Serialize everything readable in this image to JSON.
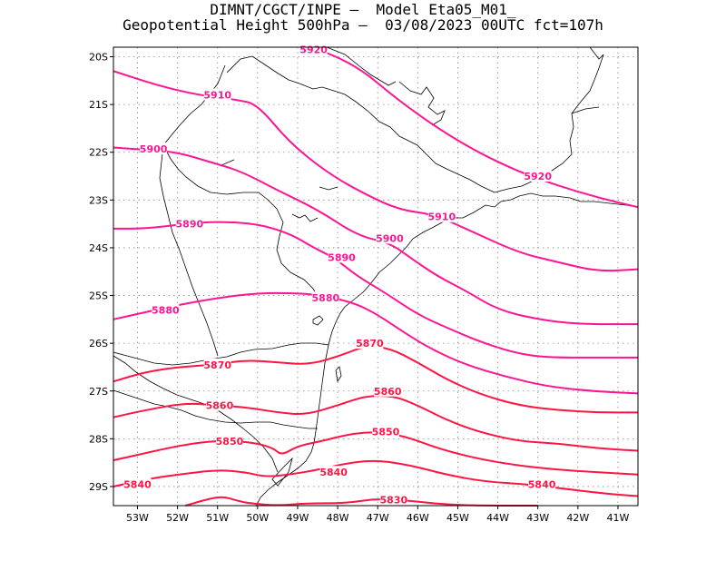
{
  "title": {
    "line1": "DIMNT/CGCT/INPE –  Model Eta05_M01_",
    "line2": "Geopotential Height 500hPa –  03/08/2023 00UTC fct=107h"
  },
  "map": {
    "lon_range": [
      -53.6,
      -40.5
    ],
    "lat_range": [
      -29.4,
      -19.8
    ],
    "lon_ticks": [
      {
        "value": -53,
        "label": "53W"
      },
      {
        "value": -52,
        "label": "52W"
      },
      {
        "value": -51,
        "label": "51W"
      },
      {
        "value": -50,
        "label": "50W"
      },
      {
        "value": -49,
        "label": "49W"
      },
      {
        "value": -48,
        "label": "48W"
      },
      {
        "value": -47,
        "label": "47W"
      },
      {
        "value": -46,
        "label": "46W"
      },
      {
        "value": -45,
        "label": "45W"
      },
      {
        "value": -44,
        "label": "44W"
      },
      {
        "value": -43,
        "label": "43W"
      },
      {
        "value": -42,
        "label": "42W"
      },
      {
        "value": -41,
        "label": "41W"
      }
    ],
    "lat_ticks": [
      {
        "value": -20,
        "label": "20S"
      },
      {
        "value": -21,
        "label": "21S"
      },
      {
        "value": -22,
        "label": "22S"
      },
      {
        "value": -23,
        "label": "23S"
      },
      {
        "value": -24,
        "label": "24S"
      },
      {
        "value": -25,
        "label": "25S"
      },
      {
        "value": -26,
        "label": "26S"
      },
      {
        "value": -27,
        "label": "27S"
      },
      {
        "value": -28,
        "label": "28S"
      },
      {
        "value": -29,
        "label": "29S"
      }
    ],
    "grid": "dotted",
    "boundary_color": "#000000",
    "contours": [
      {
        "value": 5920,
        "label": "5920",
        "color": "#ff1493",
        "points": [
          [
            -48.6,
            -19.8
          ],
          [
            -47.5,
            -20.2
          ],
          [
            -46.5,
            -20.9
          ],
          [
            -45.5,
            -21.5
          ],
          [
            -44.5,
            -22.0
          ],
          [
            -43.5,
            -22.4
          ],
          [
            -42.5,
            -22.7
          ],
          [
            -41.5,
            -22.95
          ],
          [
            -40.5,
            -23.15
          ]
        ],
        "labels": [
          [
            -48.6,
            -19.85
          ],
          [
            -43.0,
            -22.5
          ]
        ]
      },
      {
        "value": 5910,
        "label": "5910",
        "color": "#ff1493",
        "points": [
          [
            -53.6,
            -20.3
          ],
          [
            -52.5,
            -20.6
          ],
          [
            -51.5,
            -20.8
          ],
          [
            -50.5,
            -20.9
          ],
          [
            -50.0,
            -21.0
          ],
          [
            -49.2,
            -21.8
          ],
          [
            -48.3,
            -22.4
          ],
          [
            -47.5,
            -22.8
          ],
          [
            -46.5,
            -23.2
          ],
          [
            -45.6,
            -23.3
          ],
          [
            -44.8,
            -23.6
          ],
          [
            -43.5,
            -24.1
          ],
          [
            -42.5,
            -24.3
          ],
          [
            -41.5,
            -24.5
          ],
          [
            -40.5,
            -24.45
          ]
        ],
        "labels": [
          [
            -51.0,
            -20.8
          ],
          [
            -45.4,
            -23.35
          ]
        ]
      },
      {
        "value": 5900,
        "label": "5900",
        "color": "#ff1493",
        "points": [
          [
            -53.6,
            -21.9
          ],
          [
            -52.8,
            -21.95
          ],
          [
            -52.0,
            -22.0
          ],
          [
            -51.2,
            -22.2
          ],
          [
            -50.4,
            -22.4
          ],
          [
            -49.5,
            -22.8
          ],
          [
            -48.5,
            -23.2
          ],
          [
            -47.5,
            -23.75
          ],
          [
            -46.7,
            -23.9
          ],
          [
            -46.2,
            -24.2
          ],
          [
            -45.5,
            -24.6
          ],
          [
            -44.8,
            -24.9
          ],
          [
            -44.0,
            -25.3
          ],
          [
            -43.0,
            -25.5
          ],
          [
            -42.0,
            -25.6
          ],
          [
            -40.5,
            -25.6
          ]
        ],
        "labels": [
          [
            -52.6,
            -21.93
          ],
          [
            -46.7,
            -23.8
          ]
        ]
      },
      {
        "value": 5890,
        "label": "5890",
        "color": "#ff1493",
        "points": [
          [
            -53.6,
            -23.6
          ],
          [
            -52.8,
            -23.6
          ],
          [
            -51.8,
            -23.5
          ],
          [
            -51.0,
            -23.45
          ],
          [
            -50.0,
            -23.5
          ],
          [
            -49.2,
            -23.7
          ],
          [
            -48.6,
            -24.0
          ],
          [
            -48.1,
            -24.2
          ],
          [
            -47.5,
            -24.6
          ],
          [
            -46.8,
            -24.95
          ],
          [
            -46.0,
            -25.4
          ],
          [
            -45.2,
            -25.7
          ],
          [
            -44.5,
            -25.95
          ],
          [
            -43.6,
            -26.2
          ],
          [
            -42.8,
            -26.3
          ],
          [
            -41.5,
            -26.3
          ],
          [
            -40.5,
            -26.3
          ]
        ],
        "labels": [
          [
            -51.7,
            -23.5
          ],
          [
            -47.9,
            -24.2
          ]
        ]
      },
      {
        "value": 5880,
        "label": "5880",
        "color": "#ff1493",
        "points": [
          [
            -53.6,
            -25.5
          ],
          [
            -52.8,
            -25.35
          ],
          [
            -52.0,
            -25.2
          ],
          [
            -51.0,
            -25.05
          ],
          [
            -50.0,
            -24.95
          ],
          [
            -49.0,
            -24.95
          ],
          [
            -48.4,
            -25.0
          ],
          [
            -47.6,
            -25.15
          ],
          [
            -47.0,
            -25.4
          ],
          [
            -46.3,
            -25.8
          ],
          [
            -45.6,
            -26.15
          ],
          [
            -44.8,
            -26.45
          ],
          [
            -43.8,
            -26.7
          ],
          [
            -42.8,
            -26.9
          ],
          [
            -41.7,
            -27.0
          ],
          [
            -40.5,
            -27.05
          ]
        ],
        "labels": [
          [
            -52.3,
            -25.3
          ],
          [
            -48.3,
            -25.05
          ]
        ]
      },
      {
        "value": 5870,
        "label": "5870",
        "color": "#ff1444",
        "points": [
          [
            -53.6,
            -26.8
          ],
          [
            -52.8,
            -26.6
          ],
          [
            -52.0,
            -26.5
          ],
          [
            -51.1,
            -26.45
          ],
          [
            -50.3,
            -26.35
          ],
          [
            -49.5,
            -26.4
          ],
          [
            -48.7,
            -26.45
          ],
          [
            -47.9,
            -26.25
          ],
          [
            -47.3,
            -26.05
          ],
          [
            -46.7,
            -26.1
          ],
          [
            -46.0,
            -26.4
          ],
          [
            -45.3,
            -26.75
          ],
          [
            -44.5,
            -27.05
          ],
          [
            -43.5,
            -27.3
          ],
          [
            -42.5,
            -27.4
          ],
          [
            -41.5,
            -27.45
          ],
          [
            -40.5,
            -27.45
          ]
        ],
        "labels": [
          [
            -51.0,
            -26.45
          ],
          [
            -47.2,
            -26.0
          ]
        ]
      },
      {
        "value": 5860,
        "label": "5860",
        "color": "#ff1444",
        "points": [
          [
            -53.6,
            -27.55
          ],
          [
            -52.8,
            -27.4
          ],
          [
            -51.8,
            -27.25
          ],
          [
            -51.0,
            -27.3
          ],
          [
            -50.2,
            -27.35
          ],
          [
            -49.5,
            -27.45
          ],
          [
            -48.8,
            -27.5
          ],
          [
            -48.0,
            -27.3
          ],
          [
            -47.3,
            -27.1
          ],
          [
            -46.6,
            -27.1
          ],
          [
            -46.0,
            -27.3
          ],
          [
            -45.3,
            -27.6
          ],
          [
            -44.5,
            -27.85
          ],
          [
            -43.5,
            -28.05
          ],
          [
            -42.5,
            -28.1
          ],
          [
            -41.5,
            -28.2
          ],
          [
            -40.5,
            -28.25
          ]
        ],
        "labels": [
          [
            -50.95,
            -27.3
          ],
          [
            -46.75,
            -27.0
          ]
        ]
      },
      {
        "value": 5850,
        "label": "5850",
        "color": "#ff1444",
        "points": [
          [
            -53.6,
            -28.45
          ],
          [
            -52.8,
            -28.3
          ],
          [
            -52.0,
            -28.15
          ],
          [
            -51.2,
            -28.05
          ],
          [
            -50.5,
            -28.05
          ],
          [
            -50.0,
            -28.1
          ],
          [
            -49.6,
            -28.2
          ],
          [
            -49.4,
            -28.35
          ],
          [
            -49.0,
            -28.15
          ],
          [
            -48.4,
            -28.05
          ],
          [
            -47.7,
            -27.9
          ],
          [
            -47.0,
            -27.85
          ],
          [
            -46.3,
            -27.95
          ],
          [
            -45.5,
            -28.2
          ],
          [
            -44.6,
            -28.4
          ],
          [
            -43.6,
            -28.55
          ],
          [
            -42.5,
            -28.65
          ],
          [
            -41.5,
            -28.7
          ],
          [
            -40.5,
            -28.75
          ]
        ],
        "labels": [
          [
            -50.7,
            -28.05
          ],
          [
            -46.8,
            -27.85
          ]
        ]
      },
      {
        "value": 5840,
        "label": "5840",
        "color": "#ff1444",
        "points": [
          [
            -53.6,
            -29.0
          ],
          [
            -52.8,
            -28.85
          ],
          [
            -52.0,
            -28.75
          ],
          [
            -51.0,
            -28.65
          ],
          [
            -50.3,
            -28.7
          ],
          [
            -49.8,
            -28.8
          ],
          [
            -49.2,
            -28.75
          ],
          [
            -48.5,
            -28.65
          ],
          [
            -47.7,
            -28.5
          ],
          [
            -47.0,
            -28.45
          ],
          [
            -46.2,
            -28.55
          ],
          [
            -45.3,
            -28.75
          ],
          [
            -44.3,
            -28.9
          ],
          [
            -43.3,
            -28.95
          ],
          [
            -42.3,
            -29.05
          ],
          [
            -41.3,
            -29.15
          ],
          [
            -40.5,
            -29.2
          ]
        ],
        "labels": [
          [
            -53.0,
            -28.95
          ],
          [
            -48.1,
            -28.7
          ],
          [
            -42.9,
            -28.95
          ]
        ]
      },
      {
        "value": 5830,
        "label": "5830",
        "color": "#ff1444",
        "points": [
          [
            -51.8,
            -29.4
          ],
          [
            -51.4,
            -29.3
          ],
          [
            -50.9,
            -29.2
          ],
          [
            -50.5,
            -29.3
          ],
          [
            -50.2,
            -29.35
          ],
          [
            -49.5,
            -29.4
          ],
          [
            -48.8,
            -29.35
          ],
          [
            -47.8,
            -29.35
          ],
          [
            -47.0,
            -29.25
          ],
          [
            -46.2,
            -29.3
          ],
          [
            -45.3,
            -29.38
          ],
          [
            -44.2,
            -29.4
          ],
          [
            -43.0,
            -29.4
          ]
        ],
        "labels": [
          [
            -46.6,
            -29.28
          ]
        ]
      }
    ]
  }
}
